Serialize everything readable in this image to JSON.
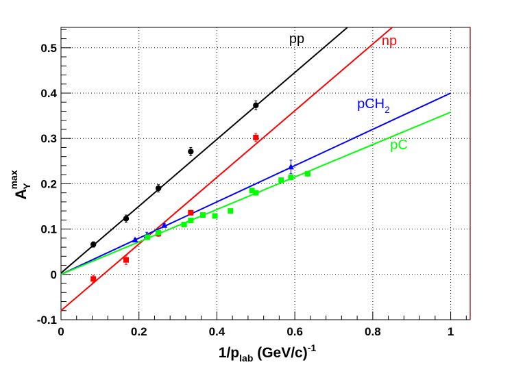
{
  "chart_data": {
    "type": "scatter",
    "title": "",
    "xlabel": {
      "main": "1/p",
      "sub": "lab",
      "units": " (GeV/c)",
      "sup": "-1"
    },
    "ylabel": {
      "main": "A",
      "sub": "Y",
      "sup": "max"
    },
    "xlim": [
      0,
      1.05
    ],
    "ylim": [
      -0.1,
      0.545
    ],
    "x_ticks": [
      0,
      0.2,
      0.4,
      0.6,
      0.8,
      1
    ],
    "x_tick_labels": [
      "0",
      "0.2",
      "0.4",
      "0.6",
      "0.8",
      "1"
    ],
    "y_ticks": [
      -0.1,
      0,
      0.1,
      0.2,
      0.3,
      0.4,
      0.5
    ],
    "y_tick_labels": [
      "-0.1",
      "0",
      "0.1",
      "0.2",
      "0.3",
      "0.4",
      "0.5"
    ],
    "grid": true,
    "series": [
      {
        "name": "pp",
        "label_text": "pp",
        "color": "#000000",
        "marker": "circle",
        "fit_line": [
          [
            0,
            0.003
          ],
          [
            0.735,
            0.545
          ]
        ],
        "points": [
          {
            "x": 0.083,
            "y": 0.066,
            "err": 0.006
          },
          {
            "x": 0.167,
            "y": 0.123,
            "err": 0.008
          },
          {
            "x": 0.25,
            "y": 0.19,
            "err": 0.008
          },
          {
            "x": 0.333,
            "y": 0.271,
            "err": 0.009
          },
          {
            "x": 0.5,
            "y": 0.373,
            "err": 0.01
          }
        ]
      },
      {
        "name": "np",
        "label_text": "np",
        "color": "#ff0000",
        "marker": "square",
        "fit_line": [
          [
            0,
            -0.08
          ],
          [
            0.85,
            0.545
          ]
        ],
        "points": [
          {
            "x": 0.083,
            "y": -0.01,
            "err": 0.008
          },
          {
            "x": 0.167,
            "y": 0.032,
            "err": 0.01
          },
          {
            "x": 0.25,
            "y": 0.09,
            "err": 0.006
          },
          {
            "x": 0.333,
            "y": 0.136,
            "err": 0.005
          },
          {
            "x": 0.5,
            "y": 0.302,
            "err": 0.009
          }
        ]
      },
      {
        "name": "pCH2",
        "label_text": "pCH",
        "label_sub": "2",
        "color": "#0000ff",
        "marker": "triangle",
        "fit_line": [
          [
            0,
            0.0
          ],
          [
            1.0,
            0.4
          ]
        ],
        "points": [
          {
            "x": 0.19,
            "y": 0.076,
            "err": 0.003
          },
          {
            "x": 0.22,
            "y": 0.085,
            "err": 0.008
          },
          {
            "x": 0.265,
            "y": 0.108,
            "err": 0.004
          },
          {
            "x": 0.59,
            "y": 0.237,
            "err": 0.015
          }
        ]
      },
      {
        "name": "pC",
        "label_text": "pC",
        "color": "#00ff00",
        "marker": "square",
        "fit_line": [
          [
            0,
            0.0
          ],
          [
            1.0,
            0.358
          ]
        ],
        "points": [
          {
            "x": 0.222,
            "y": 0.082,
            "err": 0.004
          },
          {
            "x": 0.25,
            "y": 0.092,
            "err": 0.003
          },
          {
            "x": 0.316,
            "y": 0.11,
            "err": 0.004
          },
          {
            "x": 0.333,
            "y": 0.119,
            "err": 0.003
          },
          {
            "x": 0.364,
            "y": 0.131,
            "err": 0.003
          },
          {
            "x": 0.395,
            "y": 0.129,
            "err": 0.003
          },
          {
            "x": 0.435,
            "y": 0.14,
            "err": 0.003
          },
          {
            "x": 0.49,
            "y": 0.185,
            "err": 0.003
          },
          {
            "x": 0.5,
            "y": 0.18,
            "err": 0.003
          },
          {
            "x": 0.565,
            "y": 0.208,
            "err": 0.003
          },
          {
            "x": 0.59,
            "y": 0.214,
            "err": 0.003
          },
          {
            "x": 0.633,
            "y": 0.222,
            "err": 0.003
          }
        ]
      }
    ]
  }
}
